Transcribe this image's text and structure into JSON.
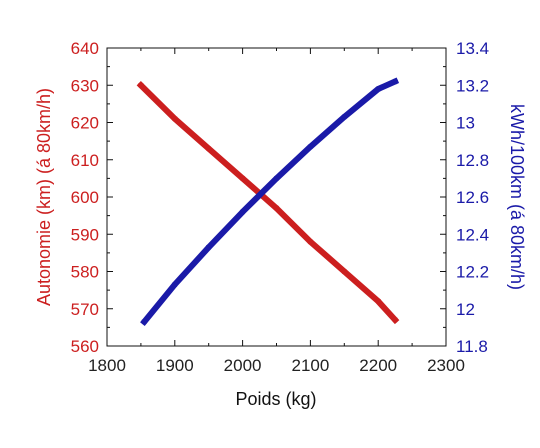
{
  "chart_data": {
    "type": "line",
    "title": "",
    "xlabel": "Poids (kg)",
    "ylabel_left": "Autonomie (km) (á 80km/h)",
    "ylabel_right": "kWh/100km (á 80km/h)",
    "xlim": [
      1800,
      2300
    ],
    "ylim_left": [
      560,
      640
    ],
    "ylim_right": [
      11.8,
      13.4
    ],
    "x_ticks": [
      "1800",
      "1900",
      "2000",
      "2100",
      "2200",
      "2300"
    ],
    "y_ticks_left": [
      "560",
      "570",
      "580",
      "590",
      "600",
      "610",
      "620",
      "630",
      "640"
    ],
    "y_ticks_right": [
      "11.8",
      "12",
      "12.2",
      "12.4",
      "12.6",
      "12.8",
      "13",
      "13.2",
      "13.4"
    ],
    "grid": false,
    "legend": "none",
    "series": [
      {
        "axis": "left",
        "color": "#cc1f1f",
        "x": [
          1850,
          1900,
          1950,
          2000,
          2050,
          2100,
          2150,
          2200,
          2225
        ],
        "y": [
          630,
          621,
          613,
          605,
          597,
          588,
          580,
          572,
          567
        ]
      },
      {
        "axis": "right",
        "color": "#1a1aa8",
        "x": [
          1855,
          1900,
          1950,
          2000,
          2050,
          2100,
          2150,
          2200,
          2225
        ],
        "y": [
          11.93,
          12.13,
          12.33,
          12.52,
          12.7,
          12.87,
          13.03,
          13.18,
          13.22
        ]
      }
    ]
  }
}
